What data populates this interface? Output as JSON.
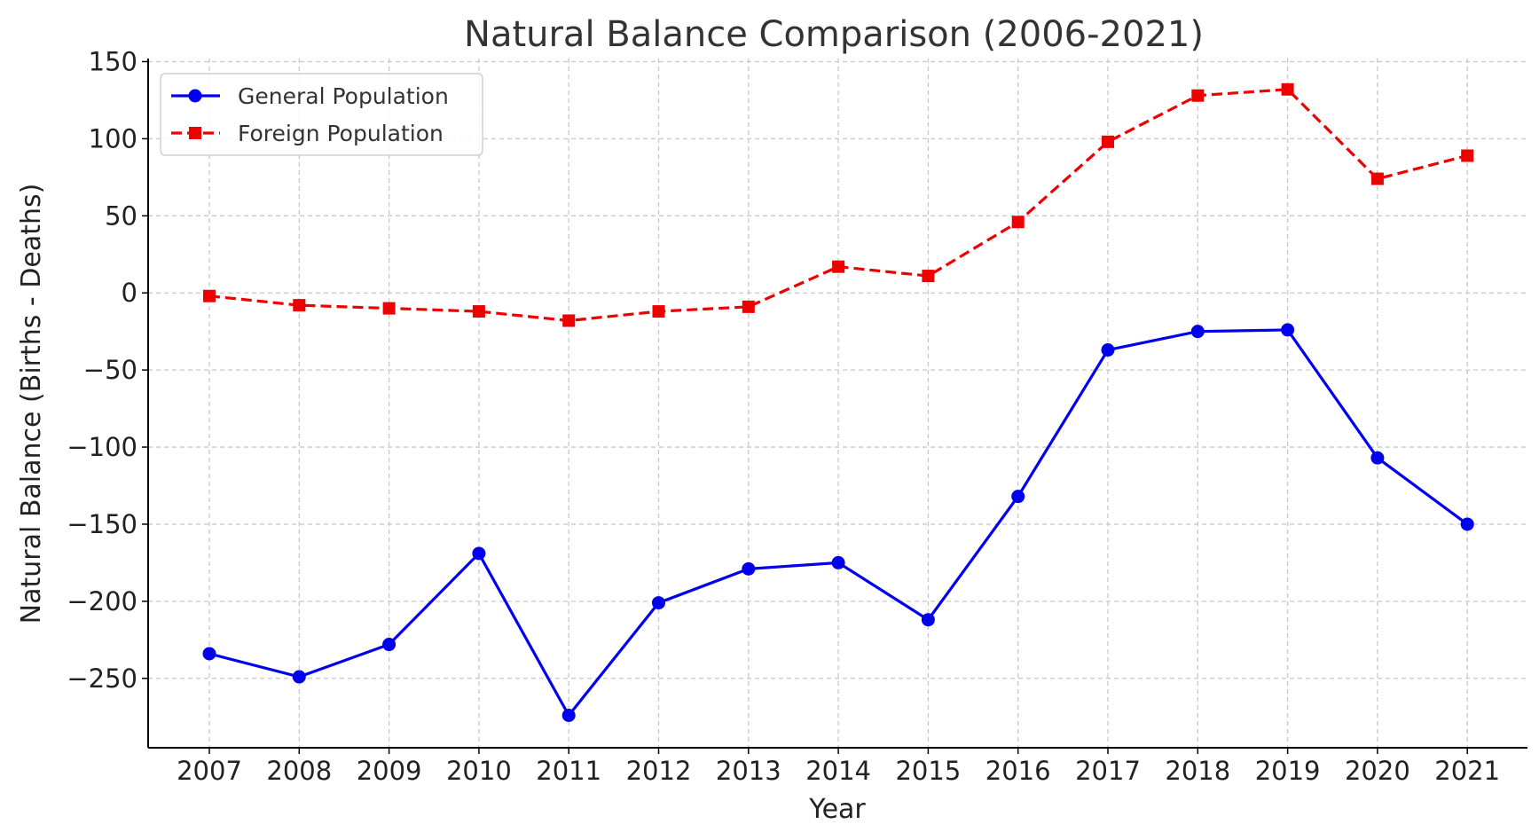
{
  "chart_data": {
    "type": "line",
    "title": "Natural Balance Comparison (2006-2021)",
    "xlabel": "Year",
    "ylabel": "Natural Balance (Births - Deaths)",
    "categories": [
      "2007",
      "2008",
      "2009",
      "2010",
      "2011",
      "2012",
      "2013",
      "2014",
      "2015",
      "2016",
      "2017",
      "2018",
      "2019",
      "2020",
      "2021"
    ],
    "series": [
      {
        "name": "General Population",
        "color": "#0000ee",
        "line_style": "solid",
        "marker": "circle",
        "values": [
          -234,
          -249,
          -228,
          -169,
          -274,
          -201,
          -179,
          -175,
          -212,
          -132,
          -37,
          -25,
          -24,
          -107,
          -150
        ]
      },
      {
        "name": "Foreign Population",
        "color": "#ee0000",
        "line_style": "dashed",
        "marker": "square",
        "values": [
          -2,
          -8,
          -10,
          -12,
          -18,
          -12,
          -9,
          17,
          11,
          46,
          98,
          128,
          132,
          74,
          89
        ]
      }
    ],
    "yticks": [
      150,
      100,
      50,
      0,
      -50,
      -100,
      -150,
      -200,
      -250
    ],
    "ytick_labels": [
      "150",
      "100",
      "50",
      "0",
      "−50",
      "−100",
      "−150",
      "−200",
      "−250"
    ],
    "ylim": [
      -295,
      152
    ],
    "grid": true,
    "legend_position": "top-left"
  }
}
